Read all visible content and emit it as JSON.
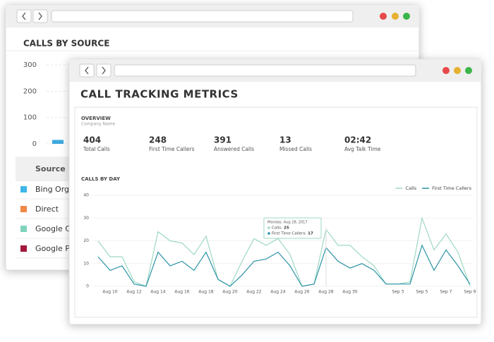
{
  "back_window": {
    "table": {
      "header": "Source",
      "rows": [
        {
          "label": "Bing Org",
          "color": "#3fb6e8"
        },
        {
          "label": "Direct",
          "color": "#f0884a"
        },
        {
          "label": "Google C",
          "color": "#7fd3bd"
        },
        {
          "label": "Google P",
          "color": "#a3173f"
        }
      ]
    }
  },
  "front_window": {
    "title": "CALL TRACKING METRICS",
    "overview": {
      "title": "OVERVIEW",
      "subtitle": "Company Name",
      "metrics": [
        {
          "value": 404,
          "label": "Total Calls"
        },
        {
          "value": 248,
          "label": "First Time Callers"
        },
        {
          "value": 391,
          "label": "Answered Calls"
        },
        {
          "value": 13,
          "label": "Missed Calls"
        },
        {
          "value": "02:42",
          "label": "Avg Talk Time"
        }
      ]
    }
  },
  "chart_data": [
    {
      "type": "bar",
      "title": "CALLS BY SOURCE",
      "categories": [
        null
      ],
      "values": [
        15
      ],
      "color": "#3fa9e0",
      "ylim": [
        0,
        300
      ],
      "yticks": [
        0,
        100,
        200,
        300
      ],
      "grid": true
    },
    {
      "type": "line",
      "title": "CALLS BY DAY",
      "x": [
        null,
        "Aug 10",
        null,
        "Aug 12",
        null,
        "Aug 14",
        null,
        "Aug 16",
        null,
        "Aug 18",
        null,
        "Aug 20",
        null,
        "Aug 22",
        null,
        "Aug 24",
        null,
        "Aug 26",
        null,
        "Aug 28",
        null,
        "Aug 30",
        null,
        null,
        null,
        "Sep 3",
        null,
        "Sep 5",
        null,
        "Sep 7",
        null,
        "Sep 9"
      ],
      "series": [
        {
          "name": "Calls",
          "color": "#9ed8c4",
          "values": [
            20,
            13,
            13,
            2,
            0,
            24,
            20,
            19,
            14,
            22,
            3,
            0,
            11,
            21,
            18,
            21,
            14,
            0,
            1,
            25,
            18,
            18,
            13,
            9,
            1,
            1,
            2,
            30,
            16,
            23,
            15,
            0
          ]
        },
        {
          "name": "First Time Callers",
          "color": "#2b93a6",
          "values": [
            13,
            7,
            9,
            1,
            0,
            15,
            9,
            11,
            7,
            15,
            3,
            0,
            5,
            11,
            12,
            15,
            9,
            0,
            1,
            17,
            11,
            8,
            10,
            7,
            1,
            1,
            1,
            18,
            7,
            16,
            9,
            1
          ]
        }
      ],
      "ylim": [
        0,
        40
      ],
      "yticks": [
        0,
        10,
        20,
        30,
        40
      ],
      "grid": true,
      "legend": "upper right",
      "tooltip": {
        "title": "Monday, Aug 28, 2017",
        "index": 19,
        "items": [
          "Calls:",
          "First Time Callers:"
        ]
      }
    }
  ]
}
